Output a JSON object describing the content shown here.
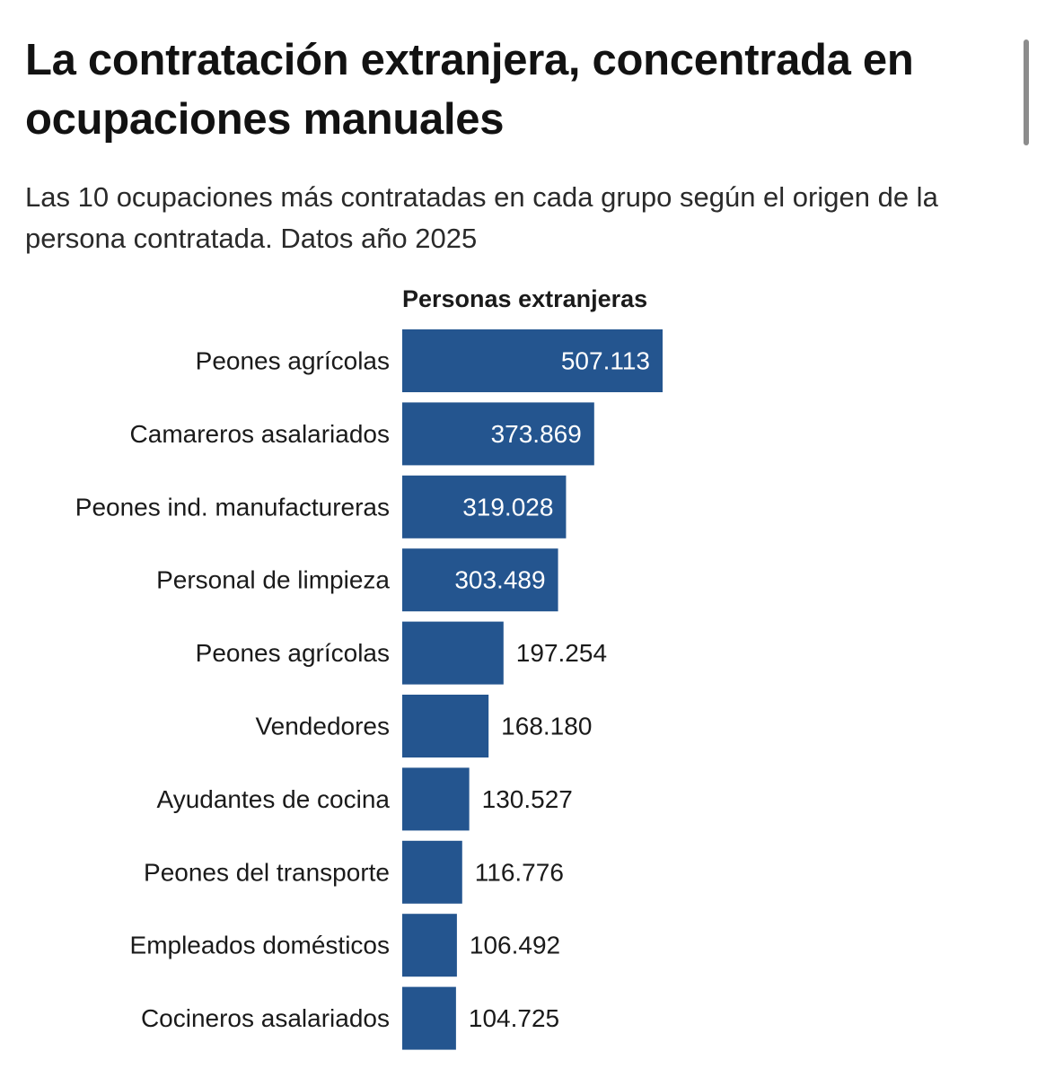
{
  "header": {
    "title": "La contratación extranjera, concentrada en ocupaciones manuales",
    "subtitle": "Las 10 ocupaciones más contratadas en cada grupo según el origen de la persona contratada. Datos año 2025"
  },
  "chart_data": {
    "type": "bar",
    "orientation": "horizontal",
    "title": "Personas extranjeras",
    "categories": [
      "Peones agrícolas",
      "Camareros asalariados",
      "Peones ind. manufactureras",
      "Personal de limpieza",
      "Peones agrícolas",
      "Vendedores",
      "Ayudantes de cocina",
      "Peones del transporte",
      "Empleados domésticos",
      "Cocineros asalariados"
    ],
    "values": [
      507113,
      373869,
      319028,
      303489,
      197254,
      168180,
      130527,
      116776,
      106492,
      104725
    ],
    "value_labels": [
      "507.113",
      "373.869",
      "319.028",
      "303.489",
      "197.254",
      "168.180",
      "130.527",
      "116.776",
      "106.492",
      "104.725"
    ],
    "bar_color": "#24558f",
    "label_inside_color": "#ffffff",
    "label_outside_color": "#1a1a1a",
    "grid": false,
    "legend": "none"
  }
}
